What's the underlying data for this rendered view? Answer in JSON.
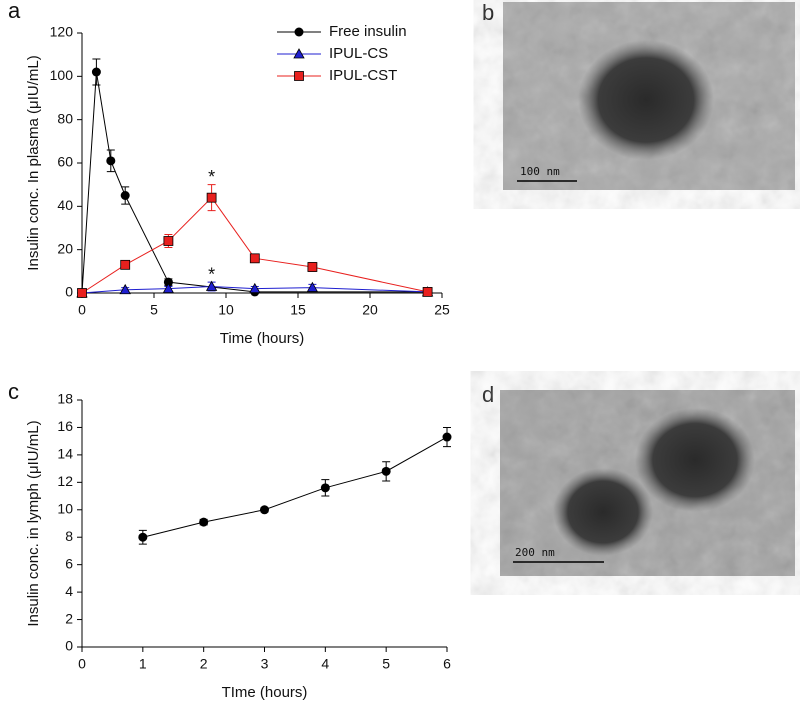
{
  "panel_labels": [
    "a",
    "b",
    "c",
    "d"
  ],
  "micrographs": [
    {
      "scale_bar": "100 nm"
    },
    {
      "scale_bar": "200 nm"
    }
  ],
  "chart_data": [
    {
      "type": "line",
      "xlabel": "Time (hours)",
      "ylabel": "Insulin conc. In plasma (μIU/mL)",
      "xlim": [
        0,
        25
      ],
      "xticks": [
        0,
        5,
        10,
        15,
        20,
        25
      ],
      "ylim": [
        0,
        120
      ],
      "yticks": [
        0,
        20,
        40,
        60,
        80,
        100,
        120
      ],
      "legend": "upper right",
      "series": [
        {
          "name": "Free insulin",
          "color": "#000000",
          "marker": "circle",
          "x": [
            0,
            1,
            2,
            3,
            6,
            12,
            24
          ],
          "values": [
            0,
            102,
            61,
            45,
            5,
            0.5,
            0.5
          ],
          "errors": [
            0,
            6,
            5,
            4,
            1.5,
            0.5,
            0.5
          ]
        },
        {
          "name": "IPUL-CS",
          "color": "#1f1fd0",
          "marker": "triangle",
          "x": [
            0,
            3,
            6,
            9,
            12,
            16,
            24
          ],
          "values": [
            0,
            1.5,
            2,
            3,
            2,
            2.5,
            0.5
          ],
          "errors": [
            0,
            1,
            1,
            2,
            1,
            1.5,
            0.5
          ]
        },
        {
          "name": "IPUL-CST",
          "color": "#e8201e",
          "marker": "square",
          "x": [
            0,
            3,
            6,
            9,
            12,
            16,
            24
          ],
          "values": [
            0,
            13,
            24,
            44,
            16,
            12,
            0.5
          ],
          "errors": [
            0,
            1.5,
            3,
            6,
            1.5,
            2,
            1
          ]
        }
      ],
      "annotations": [
        {
          "text": "*",
          "x": 9,
          "y": 53
        },
        {
          "text": "*",
          "x": 9,
          "y": 8
        }
      ]
    },
    {
      "type": "line",
      "xlabel": "TIme (hours)",
      "ylabel": "Insulin conc. in lymph (μIU/mL)",
      "xlim": [
        0,
        6
      ],
      "xticks": [
        0,
        1,
        2,
        3,
        4,
        5,
        6
      ],
      "ylim": [
        0,
        18
      ],
      "yticks": [
        0,
        2,
        4,
        6,
        8,
        10,
        12,
        14,
        16,
        18
      ],
      "series": [
        {
          "color": "#000000",
          "marker": "circle",
          "x": [
            1,
            2,
            3,
            4,
            5,
            6
          ],
          "values": [
            8,
            9.1,
            10,
            11.6,
            12.8,
            15.3
          ],
          "errors": [
            0.5,
            0.2,
            0.15,
            0.6,
            0.7,
            0.7
          ]
        }
      ]
    }
  ]
}
